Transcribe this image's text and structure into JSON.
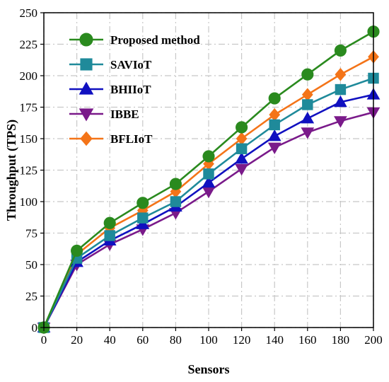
{
  "chart_data": {
    "type": "line",
    "xlabel": "Sensors",
    "ylabel": "Throughput (TPS)",
    "x": [
      0,
      20,
      40,
      60,
      80,
      100,
      120,
      140,
      160,
      180,
      200
    ],
    "xlim": [
      0,
      200
    ],
    "ylim": [
      0,
      250
    ],
    "xticks": [
      0,
      20,
      40,
      60,
      80,
      100,
      120,
      140,
      160,
      180,
      200
    ],
    "yticks": [
      0,
      25,
      50,
      75,
      100,
      125,
      150,
      175,
      200,
      225,
      250
    ],
    "grid": true,
    "grid_style": "dash-dot",
    "legend_position": "top-left",
    "series": [
      {
        "name": "Proposed method",
        "color": "#2a8a1e",
        "marker": "circle",
        "values": [
          0,
          61,
          83,
          99,
          114,
          136,
          159,
          182,
          201,
          220,
          235
        ]
      },
      {
        "name": "SAVIoT",
        "color": "#1f8a9a",
        "marker": "square",
        "values": [
          0,
          55,
          73,
          87,
          100,
          122,
          142,
          161,
          177,
          189,
          198
        ]
      },
      {
        "name": "BHIIoT",
        "color": "#1010c0",
        "marker": "triangle-up",
        "values": [
          0,
          52,
          69,
          82,
          96,
          115,
          134,
          152,
          166,
          179,
          185
        ]
      },
      {
        "name": "IBBE",
        "color": "#7a1a8a",
        "marker": "triangle-down",
        "values": [
          0,
          50,
          66,
          78,
          91,
          108,
          126,
          143,
          155,
          164,
          171
        ]
      },
      {
        "name": "BFLIoT",
        "color": "#f47418",
        "marker": "diamond",
        "values": [
          0,
          58,
          79,
          93,
          108,
          130,
          150,
          169,
          185,
          201,
          215
        ]
      }
    ]
  }
}
